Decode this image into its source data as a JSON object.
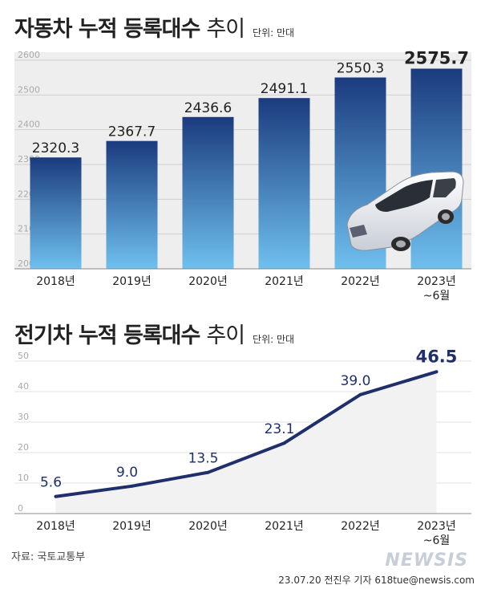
{
  "chart_data": [
    {
      "type": "bar",
      "title": "자동차 누적 등록대수",
      "title_suffix": "추이",
      "unit": "단위: 만대",
      "categories": [
        "2018년",
        "2019년",
        "2020년",
        "2021년",
        "2022년",
        "2023년\n~6월"
      ],
      "values": [
        2320.3,
        2367.7,
        2436.6,
        2491.1,
        2550.3,
        2575.7
      ],
      "value_labels": [
        "2320.3",
        "2367.7",
        "2436.6",
        "2491.1",
        "2550.3",
        "2575.7"
      ],
      "yticks": [
        "2000",
        "2100",
        "2200",
        "2300",
        "2400",
        "2500",
        "2600"
      ],
      "ylim": [
        2000,
        2600
      ],
      "grid": true,
      "colors": {
        "bar_top": "#1b3b7e",
        "bar_bottom": "#6fc0ee"
      }
    },
    {
      "type": "area",
      "title": "전기차 누적 등록대수",
      "title_suffix": "추이",
      "unit": "단위: 만대",
      "categories": [
        "2018년",
        "2019년",
        "2020년",
        "2021년",
        "2022년",
        "2023년\n~6월"
      ],
      "values": [
        5.6,
        9.0,
        13.5,
        23.1,
        39.0,
        46.5
      ],
      "value_labels": [
        "5.6",
        "9.0",
        "13.5",
        "23.1",
        "39.0",
        "46.5"
      ],
      "yticks": [
        "0",
        "10",
        "20",
        "30",
        "40",
        "50"
      ],
      "ylim": [
        0,
        50
      ],
      "grid": true,
      "colors": {
        "line": "#1f2f6b",
        "label": "#1f2f6b",
        "fill": "#f2f2f2"
      }
    }
  ],
  "footer": {
    "source": "자료: 국토교통부",
    "credit": "23.07.20 전진우 기자 618tue@newsis.com",
    "watermark": "NEWSIS"
  }
}
